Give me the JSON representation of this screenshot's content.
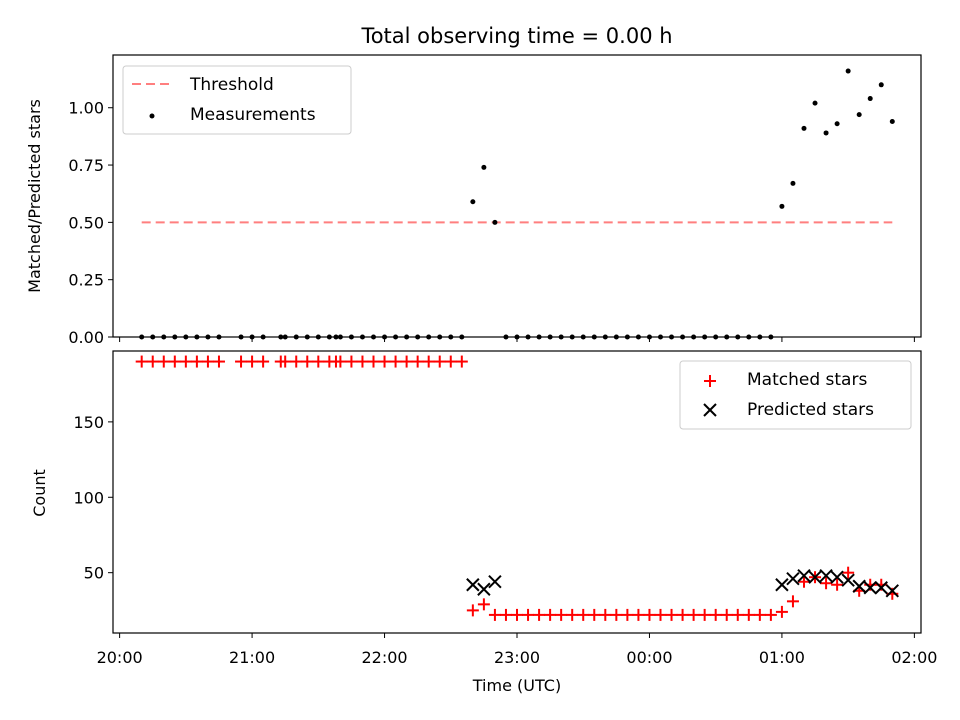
{
  "title": "Total observing time = 0.00 h",
  "colors": {
    "matched": "#ff0000",
    "predicted": "#000000",
    "threshold": "#ff7f7f",
    "measurements": "#000000"
  },
  "chart_data": [
    {
      "type": "scatter",
      "ylabel": "Matched/Predicted stars",
      "xlabel": "",
      "ylim": [
        0,
        1.23
      ],
      "yticks": [
        0.0,
        0.25,
        0.5,
        0.75,
        1.0
      ],
      "ytick_labels": [
        "0.00",
        "0.25",
        "0.50",
        "0.75",
        "1.00"
      ],
      "legend": {
        "placement": "top-left",
        "entries": [
          "Threshold",
          "Measurements"
        ]
      },
      "threshold": {
        "name": "Threshold",
        "y": 0.5,
        "x_start": "20:10",
        "x_end": "01:50",
        "style": "dashed"
      },
      "series": [
        {
          "name": "Measurements",
          "x": [
            "20:10",
            "20:15",
            "20:20",
            "20:25",
            "20:30",
            "20:35",
            "20:40",
            "20:45",
            "20:55",
            "21:00",
            "21:05",
            "21:13",
            "21:15",
            "21:20",
            "21:25",
            "21:30",
            "21:35",
            "21:38",
            "21:40",
            "21:45",
            "21:50",
            "21:55",
            "22:00",
            "22:05",
            "22:10",
            "22:15",
            "22:20",
            "22:25",
            "22:30",
            "22:35",
            "22:40",
            "22:45",
            "22:50",
            "22:55",
            "23:00",
            "23:05",
            "23:10",
            "23:15",
            "23:20",
            "23:25",
            "23:30",
            "23:35",
            "23:40",
            "23:45",
            "23:50",
            "23:55",
            "00:00",
            "00:05",
            "00:10",
            "00:15",
            "00:20",
            "00:25",
            "00:30",
            "00:35",
            "00:40",
            "00:45",
            "00:50",
            "00:55",
            "01:00",
            "01:05",
            "01:10",
            "01:15",
            "01:20",
            "01:25",
            "01:30",
            "01:35",
            "01:40",
            "01:45",
            "01:50"
          ],
          "y": [
            0,
            0,
            0,
            0,
            0,
            0,
            0,
            0,
            0,
            0,
            0,
            0,
            0,
            0,
            0,
            0,
            0,
            0,
            0,
            0,
            0,
            0,
            0,
            0,
            0,
            0,
            0,
            0,
            0,
            0,
            0.59,
            0.74,
            0.5,
            0,
            0,
            0,
            0,
            0,
            0,
            0,
            0,
            0,
            0,
            0,
            0,
            0,
            0,
            0,
            0,
            0,
            0,
            0,
            0,
            0,
            0,
            0,
            0,
            0,
            0.57,
            0.67,
            0.91,
            1.02,
            0.89,
            0.93,
            1.16,
            0.97,
            1.04,
            1.1,
            0.94
          ]
        }
      ]
    },
    {
      "type": "scatter",
      "ylabel": "Count",
      "xlabel": "Time (UTC)",
      "ylim": [
        10,
        197
      ],
      "yticks": [
        50,
        100,
        150
      ],
      "ytick_labels": [
        "50",
        "100",
        "150"
      ],
      "xlim": [
        "19:57",
        "02:03"
      ],
      "xticks": [
        "20:00",
        "21:00",
        "22:00",
        "23:00",
        "00:00",
        "01:00",
        "02:00"
      ],
      "legend": {
        "placement": "top-right",
        "entries": [
          "Matched stars",
          "Predicted stars"
        ]
      },
      "series": [
        {
          "name": "Matched stars",
          "marker": "plus",
          "x": [
            "20:10",
            "20:15",
            "20:20",
            "20:25",
            "20:30",
            "20:35",
            "20:40",
            "20:45",
            "20:55",
            "21:00",
            "21:05",
            "21:13",
            "21:15",
            "21:20",
            "21:25",
            "21:30",
            "21:35",
            "21:38",
            "21:40",
            "21:45",
            "21:50",
            "21:55",
            "22:00",
            "22:05",
            "22:10",
            "22:15",
            "22:20",
            "22:25",
            "22:30",
            "22:35",
            "22:40",
            "22:45",
            "22:50",
            "22:55",
            "23:00",
            "23:05",
            "23:10",
            "23:15",
            "23:20",
            "23:25",
            "23:30",
            "23:35",
            "23:40",
            "23:45",
            "23:50",
            "23:55",
            "00:00",
            "00:05",
            "00:10",
            "00:15",
            "00:20",
            "00:25",
            "00:30",
            "00:35",
            "00:40",
            "00:45",
            "00:50",
            "00:55",
            "01:00",
            "01:05",
            "01:10",
            "01:15",
            "01:20",
            "01:25",
            "01:30",
            "01:35",
            "01:40",
            "01:45",
            "01:50"
          ],
          "y": [
            190,
            190,
            190,
            190,
            190,
            190,
            190,
            190,
            190,
            190,
            190,
            190,
            190,
            190,
            190,
            190,
            190,
            190,
            190,
            190,
            190,
            190,
            190,
            190,
            190,
            190,
            190,
            190,
            190,
            190,
            25,
            29,
            22,
            22,
            22,
            22,
            22,
            22,
            22,
            22,
            22,
            22,
            22,
            22,
            22,
            22,
            22,
            22,
            22,
            22,
            22,
            22,
            22,
            22,
            22,
            22,
            22,
            22,
            24,
            31,
            44,
            47,
            43,
            42,
            50,
            38,
            42,
            42,
            36
          ]
        },
        {
          "name": "Predicted stars",
          "marker": "x",
          "x": [
            "22:40",
            "22:45",
            "22:50",
            "01:00",
            "01:05",
            "01:10",
            "01:15",
            "01:20",
            "01:25",
            "01:30",
            "01:35",
            "01:40",
            "01:45",
            "01:50"
          ],
          "y": [
            42,
            39,
            44,
            42,
            46,
            48,
            47,
            48,
            47,
            45,
            41,
            40,
            40,
            38
          ]
        }
      ]
    }
  ]
}
